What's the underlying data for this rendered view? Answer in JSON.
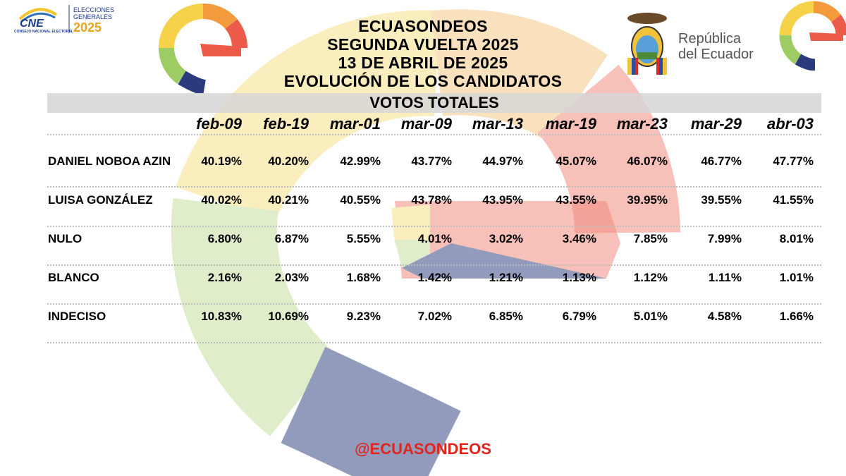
{
  "header": {
    "cne_small_text": "CONSEJO NACIONAL ELECTORAL",
    "cne_abbr": "CNE",
    "elecciones_line1": "ELECCIONES",
    "elecciones_line2": "GENERALES",
    "elecciones_year": "2025",
    "republica_line1": "República",
    "republica_line2": "del Ecuador"
  },
  "title_lines": [
    "ECUASONDEOS",
    "SEGUNDA VUELTA 2025",
    "13 DE ABRIL DE 2025",
    "EVOLUCIÓN DE LOS CANDIDATOS"
  ],
  "footer_handle": "@ECUASONDEOS",
  "colors": {
    "footer_red": "#e0261c",
    "mark_orange": "#f39a3c",
    "mark_yellow": "#f6d24a",
    "mark_red": "#ec5b4a",
    "mark_green": "#9ccc63",
    "mark_navy": "#2b3a7c"
  },
  "chart_data": {
    "type": "table",
    "title": "VOTOS TOTALES",
    "columns": [
      "feb-09",
      "feb-19",
      "mar-01",
      "mar-09",
      "mar-13",
      "mar-19",
      "mar-23",
      "mar-29",
      "abr-03"
    ],
    "rows": [
      {
        "label": "DANIEL NOBOA AZIN",
        "values": [
          "40.19%",
          "40.20%",
          "42.99%",
          "43.77%",
          "44.97%",
          "45.07%",
          "46.07%",
          "46.77%",
          "47.77%"
        ]
      },
      {
        "label": "LUISA GONZÁLEZ",
        "values": [
          "40.02%",
          "40.21%",
          "40.55%",
          "43.78%",
          "43.95%",
          "43.55%",
          "39.95%",
          "39.55%",
          "41.55%"
        ]
      },
      {
        "label": "NULO",
        "values": [
          "6.80%",
          "6.87%",
          "5.55%",
          "4.01%",
          "3.02%",
          "3.46%",
          "7.85%",
          "7.99%",
          "8.01%"
        ]
      },
      {
        "label": "BLANCO",
        "values": [
          "2.16%",
          "2.03%",
          "1.68%",
          "1.42%",
          "1.21%",
          "1.13%",
          "1.12%",
          "1.11%",
          "1.01%"
        ]
      },
      {
        "label": "INDECISO",
        "values": [
          "10.83%",
          "10.69%",
          "9.23%",
          "7.02%",
          "6.85%",
          "6.79%",
          "5.01%",
          "4.58%",
          "1.66%"
        ]
      }
    ]
  }
}
